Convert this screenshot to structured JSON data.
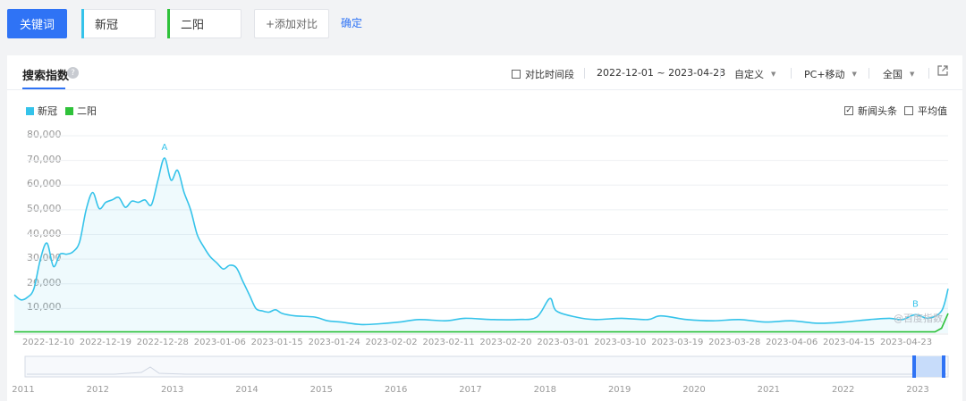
{
  "toolbar": {
    "keyword_button": "关键词",
    "keywords": [
      {
        "label": "新冠",
        "color": "#35c3ea"
      },
      {
        "label": "二阳",
        "color": "#2fc23a"
      }
    ],
    "add_compare": "+添加对比",
    "confirm": "确定"
  },
  "panel": {
    "title": "搜索指数",
    "help": "?",
    "compare_period": "对比时间段",
    "date_range": "2022-12-01 ~ 2023-04-23",
    "custom": "自定义",
    "device": "PC+移动",
    "region": "全国",
    "news_headlines": "新闻头条",
    "average": "平均值",
    "watermark": "@百度指数"
  },
  "chart_data": {
    "type": "area",
    "series": [
      {
        "name": "新冠",
        "color": "#35c3ea"
      },
      {
        "name": "二阳",
        "color": "#2fc23a"
      }
    ],
    "y_ticks": [
      "80,000",
      "70,000",
      "60,000",
      "50,000",
      "40,000",
      "30,000",
      "20,000",
      "10,000"
    ],
    "ylim": [
      0,
      80000
    ],
    "x_ticks": [
      "2022-12-10",
      "2022-12-19",
      "2022-12-28",
      "2023-01-06",
      "2023-01-15",
      "2023-01-24",
      "2023-02-02",
      "2023-02-11",
      "2023-02-20",
      "2023-03-01",
      "2023-03-10",
      "2023-03-19",
      "2023-03-28",
      "2023-04-06",
      "2023-04-15",
      "2023-04-23"
    ],
    "x_start": "2022-12-01",
    "x_end": "2023-04-23",
    "xinguan_points": [
      [
        "2022-12-01",
        15500
      ],
      [
        "2022-12-02",
        13500
      ],
      [
        "2022-12-03",
        14500
      ],
      [
        "2022-12-04",
        18000
      ],
      [
        "2022-12-05",
        30000
      ],
      [
        "2022-12-06",
        36500
      ],
      [
        "2022-12-07",
        27000
      ],
      [
        "2022-12-08",
        32000
      ],
      [
        "2022-12-09",
        32000
      ],
      [
        "2022-12-10",
        33000
      ],
      [
        "2022-12-11",
        37000
      ],
      [
        "2022-12-12",
        50000
      ],
      [
        "2022-12-13",
        57000
      ],
      [
        "2022-12-14",
        50500
      ],
      [
        "2022-12-15",
        53000
      ],
      [
        "2022-12-16",
        54000
      ],
      [
        "2022-12-17",
        55000
      ],
      [
        "2022-12-18",
        51000
      ],
      [
        "2022-12-19",
        53500
      ],
      [
        "2022-12-20",
        53000
      ],
      [
        "2022-12-21",
        54000
      ],
      [
        "2022-12-22",
        52000
      ],
      [
        "2022-12-23",
        62000
      ],
      [
        "2022-12-24",
        71000
      ],
      [
        "2022-12-25",
        62000
      ],
      [
        "2022-12-26",
        66000
      ],
      [
        "2022-12-27",
        57000
      ],
      [
        "2022-12-28",
        50000
      ],
      [
        "2022-12-29",
        40000
      ],
      [
        "2022-12-30",
        35000
      ],
      [
        "2022-12-31",
        31000
      ],
      [
        "2023-01-01",
        28500
      ],
      [
        "2023-01-02",
        26000
      ],
      [
        "2023-01-03",
        27500
      ],
      [
        "2023-01-04",
        26500
      ],
      [
        "2023-01-05",
        21000
      ],
      [
        "2023-01-06",
        15500
      ],
      [
        "2023-01-07",
        10000
      ],
      [
        "2023-01-08",
        9000
      ],
      [
        "2023-01-09",
        8500
      ],
      [
        "2023-01-10",
        9500
      ],
      [
        "2023-01-11",
        8000
      ],
      [
        "2023-01-13",
        7000
      ],
      [
        "2023-01-16",
        6500
      ],
      [
        "2023-01-18",
        5000
      ],
      [
        "2023-01-20",
        4500
      ],
      [
        "2023-01-23",
        3500
      ],
      [
        "2023-01-26",
        3800
      ],
      [
        "2023-01-29",
        4500
      ],
      [
        "2023-02-01",
        5500
      ],
      [
        "2023-02-05",
        5000
      ],
      [
        "2023-02-08",
        6000
      ],
      [
        "2023-02-12",
        5500
      ],
      [
        "2023-02-16",
        5500
      ],
      [
        "2023-02-19",
        6500
      ],
      [
        "2023-02-21",
        14000
      ],
      [
        "2023-02-22",
        9000
      ],
      [
        "2023-02-25",
        6500
      ],
      [
        "2023-02-28",
        5500
      ],
      [
        "2023-03-04",
        6000
      ],
      [
        "2023-03-08",
        5500
      ],
      [
        "2023-03-10",
        7000
      ],
      [
        "2023-03-14",
        5500
      ],
      [
        "2023-03-18",
        5000
      ],
      [
        "2023-03-22",
        5500
      ],
      [
        "2023-03-26",
        4500
      ],
      [
        "2023-03-30",
        5000
      ],
      [
        "2023-04-03",
        4000
      ],
      [
        "2023-04-07",
        4500
      ],
      [
        "2023-04-11",
        5500
      ],
      [
        "2023-04-14",
        6000
      ],
      [
        "2023-04-16",
        5500
      ],
      [
        "2023-04-18",
        7500
      ],
      [
        "2023-04-20",
        6000
      ],
      [
        "2023-04-22",
        9000
      ],
      [
        "2023-04-23",
        18000
      ]
    ],
    "eryang_points": [
      [
        "2022-12-01",
        500
      ],
      [
        "2023-04-21",
        500
      ],
      [
        "2023-04-22",
        2000
      ],
      [
        "2023-04-23",
        8000
      ]
    ],
    "annotations": [
      {
        "label": "A",
        "date": "2022-12-24",
        "value": 71000
      },
      {
        "label": "B",
        "date": "2023-04-18",
        "value": 7500
      }
    ],
    "overview_years": [
      "2011",
      "2012",
      "2013",
      "2014",
      "2015",
      "2016",
      "2017",
      "2018",
      "2019",
      "2020",
      "2021",
      "2022",
      "2023"
    ]
  }
}
